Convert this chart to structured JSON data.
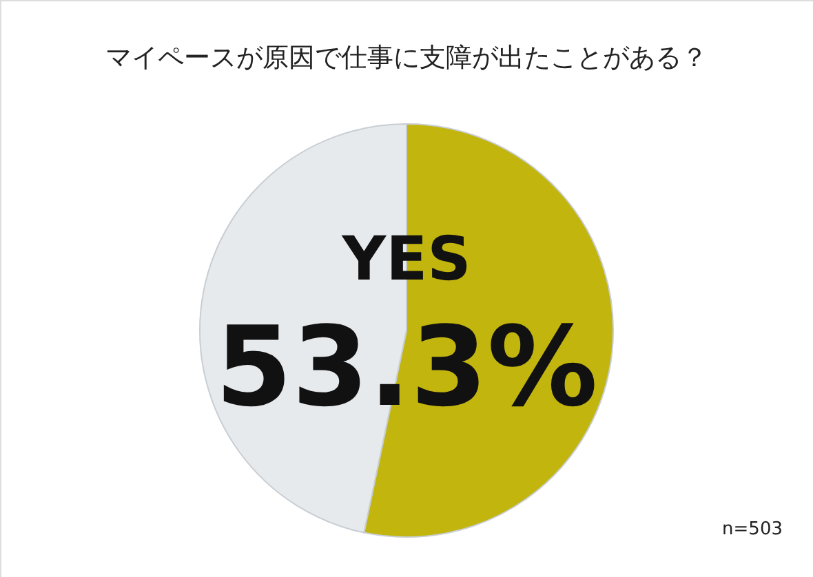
{
  "chart_data": {
    "type": "pie",
    "title": "マイペースが原因で仕事に支障が出たことがある？",
    "categories": [
      "YES",
      null
    ],
    "values": [
      53.3,
      46.7
    ],
    "colors": [
      "#c2b50e",
      "#e6eaed"
    ],
    "value_labels": [
      "53.3%",
      null
    ],
    "annotations": [
      "n=503"
    ]
  }
}
